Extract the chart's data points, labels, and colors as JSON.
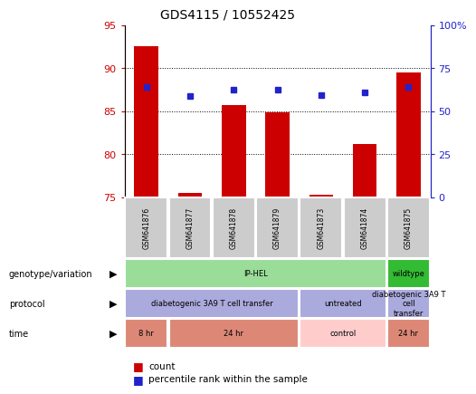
{
  "title": "GDS4115 / 10552425",
  "samples": [
    "GSM641876",
    "GSM641877",
    "GSM641878",
    "GSM641879",
    "GSM641873",
    "GSM641874",
    "GSM641875"
  ],
  "count_values": [
    92.5,
    75.5,
    85.7,
    84.8,
    75.3,
    81.2,
    89.5
  ],
  "percentile_values": [
    87.8,
    86.7,
    87.5,
    87.5,
    86.8,
    87.2,
    87.8
  ],
  "ylim_left": [
    75,
    95
  ],
  "ylim_right": [
    0,
    100
  ],
  "yticks_left": [
    75,
    80,
    85,
    90,
    95
  ],
  "yticks_right": [
    0,
    25,
    50,
    75,
    100
  ],
  "bar_color": "#cc0000",
  "dot_color": "#2222cc",
  "background_color": "#ffffff",
  "tick_color_left": "#cc0000",
  "tick_color_right": "#2222cc",
  "genotype_groups": [
    {
      "label": "IP-HEL",
      "start": 0,
      "end": 5,
      "color": "#99dd99"
    },
    {
      "label": "wildtype",
      "start": 6,
      "end": 6,
      "color": "#33bb33"
    }
  ],
  "protocol_groups": [
    {
      "label": "diabetogenic 3A9 T cell transfer",
      "start": 0,
      "end": 3,
      "color": "#aaaadd"
    },
    {
      "label": "untreated",
      "start": 4,
      "end": 5,
      "color": "#aaaadd"
    },
    {
      "label": "diabetogenic 3A9 T\ncell\ntransfer",
      "start": 6,
      "end": 6,
      "color": "#aaaadd"
    }
  ],
  "time_groups": [
    {
      "label": "8 hr",
      "start": 0,
      "end": 0,
      "color": "#dd8877"
    },
    {
      "label": "24 hr",
      "start": 1,
      "end": 3,
      "color": "#dd8877"
    },
    {
      "label": "control",
      "start": 4,
      "end": 5,
      "color": "#ffcccc"
    },
    {
      "label": "24 hr",
      "start": 6,
      "end": 6,
      "color": "#dd8877"
    }
  ],
  "legend_count_color": "#cc0000",
  "legend_dot_color": "#2222cc",
  "row_labels": [
    "genotype/variation",
    "protocol",
    "time"
  ]
}
